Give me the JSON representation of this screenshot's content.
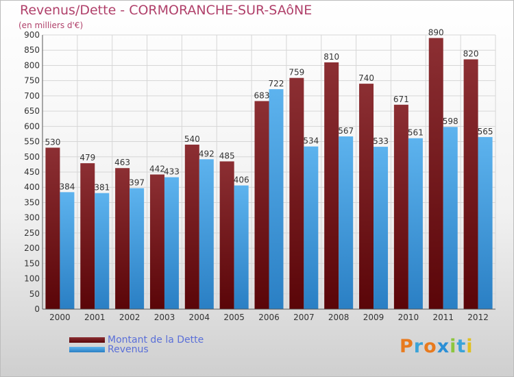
{
  "title": "Revenus/Dette - CORMORANCHE-SUR-SAôNE",
  "subtitle": "(en milliers d'€)",
  "logo": {
    "text": "Proxiti",
    "colors": [
      "#e87a1e",
      "#3aa3d8",
      "#e87a1e",
      "#2b8fd6",
      "#8cc63f",
      "#3aa3d8",
      "#e0c021"
    ]
  },
  "colors": {
    "dette": "#7a1a1e",
    "revenus": "#4aa3e6",
    "label": "#333333",
    "legend_text": "#5a6fd8",
    "title": "#b0406a"
  },
  "legend": {
    "dette": "Montant de la Dette",
    "revenus": "Revenus"
  },
  "chart_data": {
    "type": "bar",
    "title": "Revenus/Dette - CORMORANCHE-SUR-SAôNE",
    "ylabel": "(en milliers d'€)",
    "categories": [
      "2000",
      "2001",
      "2002",
      "2003",
      "2004",
      "2005",
      "2006",
      "2007",
      "2008",
      "2009",
      "2010",
      "2011",
      "2012"
    ],
    "series": [
      {
        "name": "Montant de la Dette",
        "values": [
          530,
          479,
          463,
          442,
          540,
          485,
          683,
          759,
          810,
          740,
          671,
          890,
          820
        ]
      },
      {
        "name": "Revenus",
        "values": [
          384,
          381,
          397,
          433,
          492,
          406,
          722,
          534,
          567,
          533,
          561,
          598,
          565
        ]
      }
    ],
    "ylim": [
      0,
      900
    ],
    "yticks": [
      0,
      50,
      100,
      150,
      200,
      250,
      300,
      350,
      400,
      450,
      500,
      550,
      600,
      650,
      700,
      750,
      800,
      850,
      900
    ],
    "grid": true,
    "legend_position": "bottom-left"
  }
}
